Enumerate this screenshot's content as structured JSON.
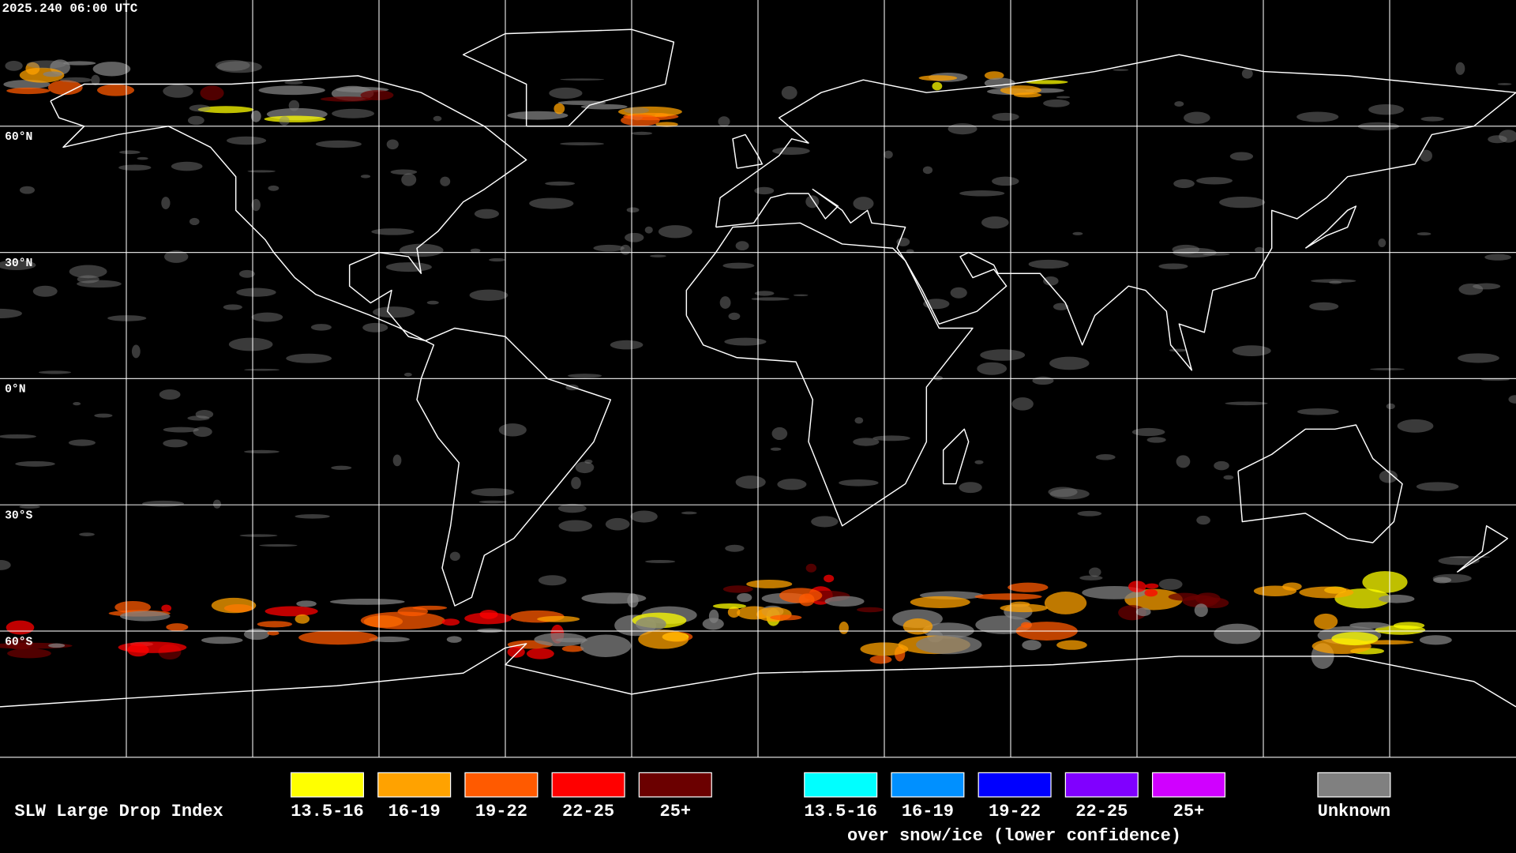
{
  "header": {
    "timestamp": "2025.240 06:00 UTC"
  },
  "map": {
    "latitude_labels": [
      "60°N",
      "30°N",
      "0°N",
      "30°S",
      "60°S"
    ]
  },
  "legend": {
    "title": "SLW Large Drop Index",
    "groups": [
      {
        "items": [
          {
            "label": "13.5-16",
            "color": "#ffff00"
          },
          {
            "label": "16-19",
            "color": "#ffa200"
          },
          {
            "label": "19-22",
            "color": "#ff5a00"
          },
          {
            "label": "22-25",
            "color": "#ff0000"
          },
          {
            "label": "25+",
            "color": "#6b0000"
          }
        ]
      },
      {
        "items": [
          {
            "label": "13.5-16",
            "color": "#00ffff"
          },
          {
            "label": "16-19",
            "color": "#0090ff"
          },
          {
            "label": "19-22",
            "color": "#0000ff"
          },
          {
            "label": "22-25",
            "color": "#8000ff"
          },
          {
            "label": "25+",
            "color": "#d000ff"
          }
        ],
        "caption": "over snow/ice (lower confidence)"
      }
    ],
    "unknown": {
      "label": "Unknown",
      "color": "#808080"
    }
  }
}
